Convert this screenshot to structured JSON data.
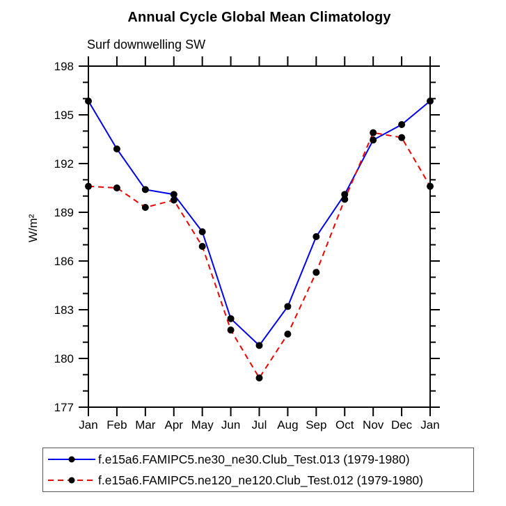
{
  "title": "Annual Cycle Global Mean Climatology",
  "subtitle": "Surf downwelling SW",
  "chart_data": {
    "type": "line",
    "title": "Annual Cycle Global Mean Climatology",
    "subtitle": "Surf downwelling SW",
    "xlabel": "",
    "ylabel": "W/m²",
    "ylim": [
      177,
      198
    ],
    "ytick_major": [
      177,
      180,
      183,
      186,
      189,
      192,
      195,
      198
    ],
    "ytick_minor_step": 1,
    "grid": "off",
    "legend_position": "bottom",
    "categories": [
      "Jan",
      "Feb",
      "Mar",
      "Apr",
      "May",
      "Jun",
      "Jul",
      "Aug",
      "Sep",
      "Oct",
      "Nov",
      "Dec",
      "Jan"
    ],
    "series": [
      {
        "name": "f.e15a6.FAMIPC5.ne30_ne30.Club_Test.013 (1979-1980)",
        "color": "#0000ee",
        "line_style": "solid",
        "marker": "filled-circle",
        "marker_color": "#000000",
        "values": [
          195.85,
          192.9,
          190.4,
          190.1,
          187.8,
          182.45,
          180.8,
          183.2,
          187.5,
          190.1,
          193.45,
          194.4,
          195.85
        ]
      },
      {
        "name": "f.e15a6.FAMIPC5.ne120_ne120.Club_Test.012 (1979-1980)",
        "color": "#ee0000",
        "line_style": "dashed",
        "marker": "filled-circle",
        "marker_color": "#000000",
        "values": [
          190.6,
          190.5,
          189.3,
          189.75,
          186.9,
          181.75,
          178.8,
          181.5,
          185.3,
          189.8,
          193.9,
          193.6,
          190.6
        ]
      }
    ]
  }
}
